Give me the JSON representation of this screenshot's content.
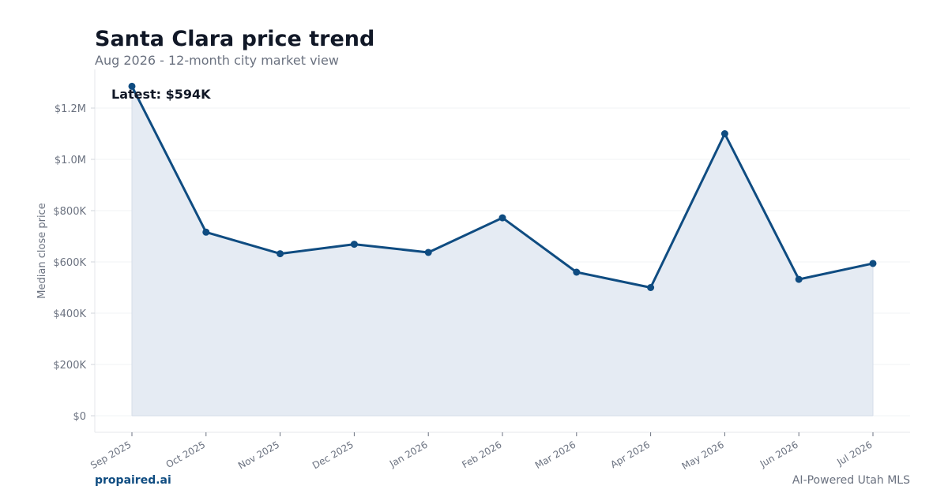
{
  "header": {
    "title": "Santa Clara price trend",
    "subtitle": "Aug 2026 - 12-month city market view"
  },
  "footer": {
    "brand": "propaired.ai",
    "tagline": "AI-Powered Utah MLS"
  },
  "colors": {
    "line": "#0f4c81",
    "fill": "#e5ebf3",
    "grid": "#f1f3f5",
    "axis_text": "#6b7280",
    "title": "#111827"
  },
  "chart_data": {
    "type": "line",
    "title": "Santa Clara price trend",
    "subtitle": "Aug 2026 - 12-month city market view",
    "xlabel": "",
    "ylabel": "Median close price",
    "categories": [
      "Sep 2025",
      "Oct 2025",
      "Nov 2025",
      "Dec 2025",
      "Jan 2026",
      "Feb 2026",
      "Mar 2026",
      "Apr 2026",
      "May 2026",
      "Jun 2026",
      "Jul 2026"
    ],
    "series": [
      {
        "values": [
          1285000,
          716000,
          632000,
          669000,
          637000,
          772000,
          560000,
          500000,
          1100000,
          532000,
          594000
        ]
      }
    ],
    "ylim": [
      -60000,
      1350000
    ],
    "yticks": [
      0,
      200000,
      400000,
      600000,
      800000,
      1000000,
      1200000
    ],
    "ytick_labels": [
      "$0",
      "$200K",
      "$400K",
      "$600K",
      "$800K",
      "$1.0M",
      "$1.2M"
    ],
    "area_fill": true,
    "grid": true,
    "annotation": "Latest: $594K"
  }
}
